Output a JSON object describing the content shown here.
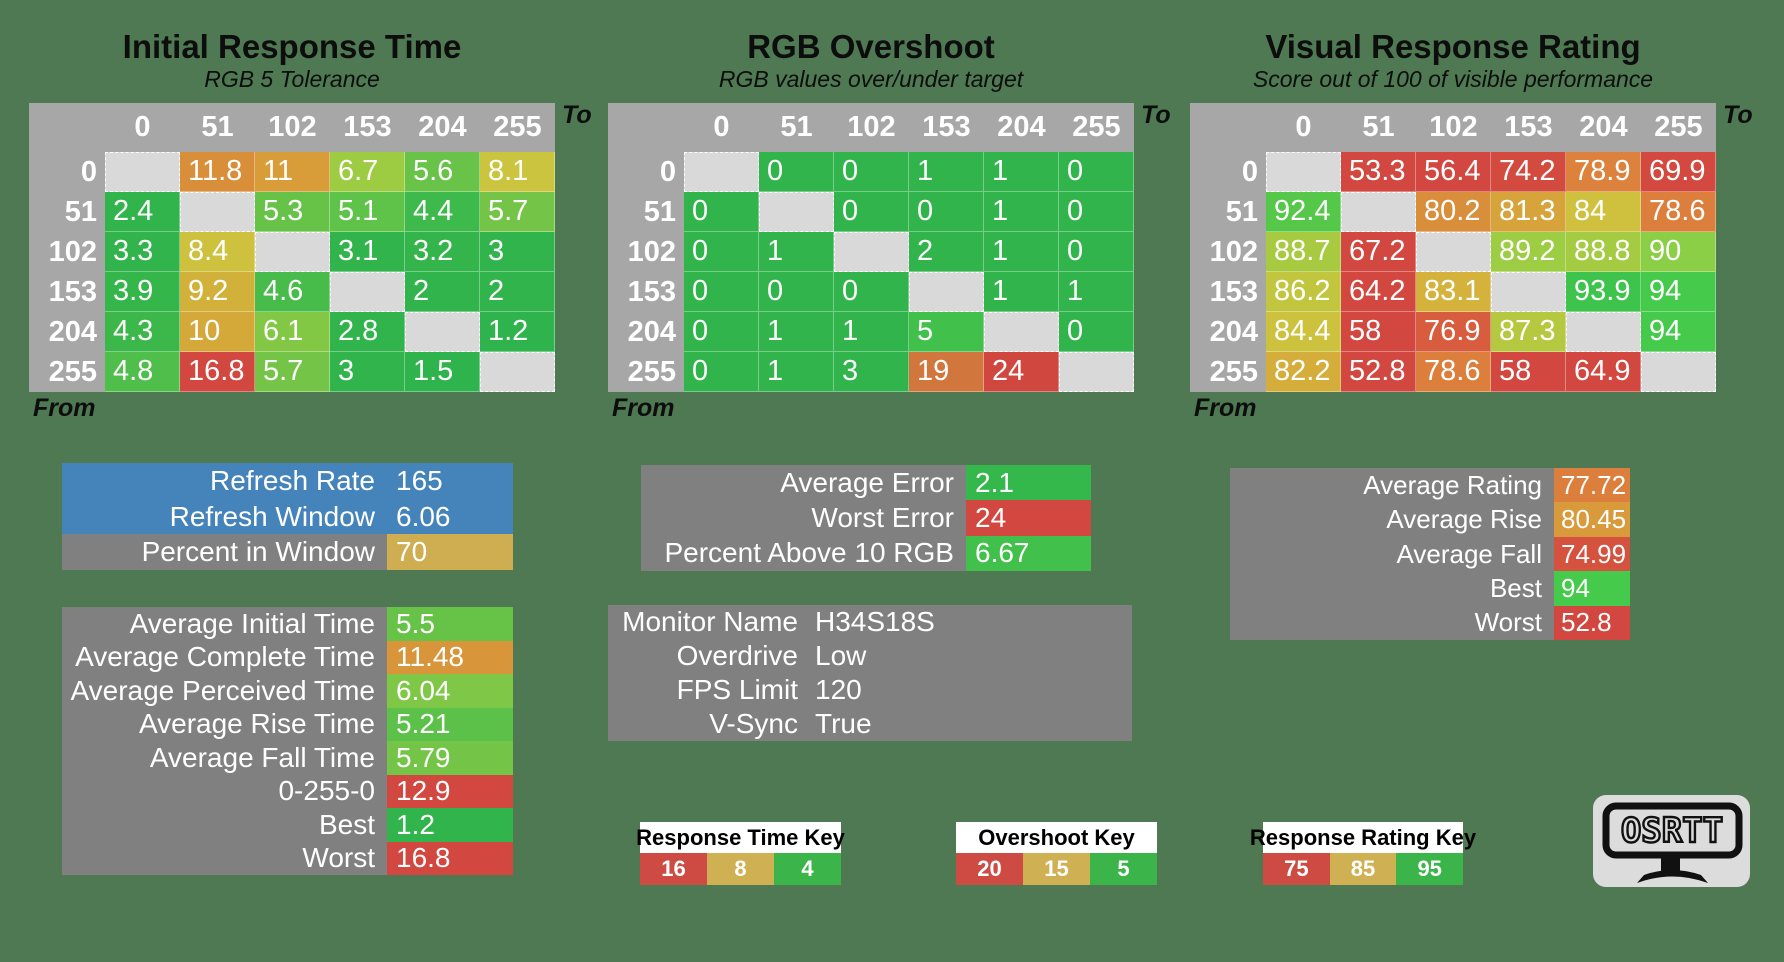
{
  "background_color": "#4e7952",
  "chart_data": [
    {
      "type": "heatmap",
      "title": "Initial Response Time",
      "subtitle": "RGB 5 Tolerance",
      "x_label": "To",
      "y_label": "From",
      "x_ticks": [
        "0",
        "51",
        "102",
        "153",
        "204",
        "255"
      ],
      "y_ticks": [
        "0",
        "51",
        "102",
        "153",
        "204",
        "255"
      ],
      "values": [
        [
          null,
          11.8,
          11,
          6.7,
          5.6,
          8.1
        ],
        [
          2.4,
          null,
          5.3,
          5.1,
          4.4,
          5.7
        ],
        [
          3.3,
          8.4,
          null,
          3.1,
          3.2,
          3
        ],
        [
          3.9,
          9.2,
          4.6,
          null,
          2,
          2
        ],
        [
          4.3,
          10,
          6.1,
          2.8,
          null,
          1.2
        ],
        [
          4.8,
          16.8,
          5.7,
          3,
          1.5,
          null
        ]
      ],
      "cell_colors": [
        [
          null,
          "#d98f3a",
          "#d89c39",
          "#9dcb42",
          "#68c348",
          "#cbc43e"
        ],
        [
          "#31b44b",
          null,
          "#66c348",
          "#5fc249",
          "#3eb94b",
          "#74c547"
        ],
        [
          "#31b44b",
          "#cdc13d",
          null,
          "#31b44b",
          "#33b54b",
          "#31b44b"
        ],
        [
          "#35b64b",
          "#d2b13b",
          "#47bc4a",
          null,
          "#31b44b",
          "#31b44b"
        ],
        [
          "#3cb84b",
          "#d5a83a",
          "#83c845",
          "#31b44b",
          null,
          "#2fb34c"
        ],
        [
          "#50be4a",
          "#d2473f",
          "#74c547",
          "#31b44b",
          "#2fb34c",
          null
        ]
      ]
    },
    {
      "type": "heatmap",
      "title": "RGB Overshoot",
      "subtitle": "RGB values over/under target",
      "x_label": "To",
      "y_label": "From",
      "x_ticks": [
        "0",
        "51",
        "102",
        "153",
        "204",
        "255"
      ],
      "y_ticks": [
        "0",
        "51",
        "102",
        "153",
        "204",
        "255"
      ],
      "values": [
        [
          null,
          0,
          0,
          1,
          1,
          0
        ],
        [
          0,
          null,
          0,
          0,
          1,
          0
        ],
        [
          0,
          1,
          null,
          2,
          1,
          0
        ],
        [
          0,
          0,
          0,
          null,
          1,
          1
        ],
        [
          0,
          1,
          1,
          5,
          null,
          0
        ],
        [
          0,
          1,
          3,
          19,
          24,
          null
        ]
      ],
      "cell_colors": [
        [
          null,
          "#31b44b",
          "#31b44b",
          "#31b44b",
          "#31b44b",
          "#31b44b"
        ],
        [
          "#31b44b",
          null,
          "#31b44b",
          "#31b44b",
          "#31b44b",
          "#31b44b"
        ],
        [
          "#31b44b",
          "#31b44b",
          null,
          "#31b44b",
          "#31b44b",
          "#31b44b"
        ],
        [
          "#31b44b",
          "#31b44b",
          "#31b44b",
          null,
          "#31b44b",
          "#31b44b"
        ],
        [
          "#31b44b",
          "#31b44b",
          "#31b44b",
          "#41c04b",
          null,
          "#31b44b"
        ],
        [
          "#31b44b",
          "#31b44b",
          "#31b44b",
          "#d1763c",
          "#d0473f",
          null
        ]
      ]
    },
    {
      "type": "heatmap",
      "title": "Visual Response Rating",
      "subtitle": "Score out of 100 of visible performance",
      "x_label": "To",
      "y_label": "From",
      "x_ticks": [
        "0",
        "51",
        "102",
        "153",
        "204",
        "255"
      ],
      "y_ticks": [
        "0",
        "51",
        "102",
        "153",
        "204",
        "255"
      ],
      "values": [
        [
          null,
          53.3,
          56.4,
          74.2,
          78.9,
          69.9
        ],
        [
          92.4,
          null,
          80.2,
          81.3,
          84,
          78.6
        ],
        [
          88.7,
          67.2,
          null,
          89.2,
          88.8,
          90
        ],
        [
          86.2,
          64.2,
          83.1,
          null,
          93.9,
          94
        ],
        [
          84.4,
          58,
          76.9,
          87.3,
          null,
          94
        ],
        [
          82.2,
          52.8,
          78.6,
          58,
          64.9,
          null
        ]
      ],
      "cell_colors": [
        [
          null,
          "#d2473f",
          "#d2473f",
          "#d34a3f",
          "#dc823c",
          "#d4493f"
        ],
        [
          "#55c84a",
          null,
          "#d98e3b",
          "#d7a43b",
          "#cfc13e",
          "#dc7f3c"
        ],
        [
          "#a8ca41",
          "#d2473f",
          null,
          "#9ccd43",
          "#a4cb42",
          "#8bcf46"
        ],
        [
          "#c2c63f",
          "#d2473f",
          "#d4b23c",
          null,
          "#3ec44c",
          "#45ca4b"
        ],
        [
          "#cdc23e",
          "#d2473f",
          "#d75d3e",
          "#b5c940",
          null,
          "#45ca4b"
        ],
        [
          "#d5ad3b",
          "#d2473f",
          "#dc7f3c",
          "#d2473f",
          "#d2473f",
          null
        ]
      ]
    }
  ],
  "panels": {
    "refresh": {
      "rows": [
        {
          "label": "Refresh Rate",
          "value": 165,
          "row_bg": "#4583bb"
        },
        {
          "label": "Refresh Window",
          "value": 6.06,
          "row_bg": "#4583bb"
        },
        {
          "label": "Percent in Window",
          "value": 70,
          "value_bg": "#cfae52"
        }
      ]
    },
    "times": {
      "rows": [
        {
          "label": "Average Initial Time",
          "value": 5.5,
          "value_bg": "#66c348"
        },
        {
          "label": "Average Complete Time",
          "value": 11.48,
          "value_bg": "#d8953a"
        },
        {
          "label": "Average Perceived Time",
          "value": 6.04,
          "value_bg": "#7fc746"
        },
        {
          "label": "Average Rise Time",
          "value": 5.21,
          "value_bg": "#5cc149"
        },
        {
          "label": "Average Fall Time",
          "value": 5.79,
          "value_bg": "#74c547"
        },
        {
          "label": "0-255-0",
          "value": 12.9,
          "value_bg": "#d2473f"
        },
        {
          "label": "Best",
          "value": 1.2,
          "value_bg": "#31b44b"
        },
        {
          "label": "Worst",
          "value": 16.8,
          "value_bg": "#d2473f"
        }
      ]
    },
    "overshoot": {
      "rows": [
        {
          "label": "Average Error",
          "value": 2.1,
          "value_bg": "#35b84b"
        },
        {
          "label": "Worst Error",
          "value": 24,
          "value_bg": "#d2473f"
        },
        {
          "label": "Percent Above 10 RGB",
          "value": 6.67,
          "value_bg": "#41c04b"
        }
      ]
    },
    "monitor": {
      "rows": [
        {
          "label": "Monitor Name",
          "value": "H34S18S"
        },
        {
          "label": "Overdrive",
          "value": "Low"
        },
        {
          "label": "FPS Limit",
          "value": 120
        },
        {
          "label": "V-Sync",
          "value": "True"
        }
      ]
    },
    "rating": {
      "rows": [
        {
          "label": "Average Rating",
          "value": 77.72,
          "value_bg": "#dc7f3c"
        },
        {
          "label": "Average Rise",
          "value": 80.45,
          "value_bg": "#d89a3a"
        },
        {
          "label": "Average Fall",
          "value": 74.99,
          "value_bg": "#d5533e"
        },
        {
          "label": "Best",
          "value": 94,
          "value_bg": "#45ca4b"
        },
        {
          "label": "Worst",
          "value": 52.8,
          "value_bg": "#d2473f"
        }
      ]
    }
  },
  "keys": [
    {
      "title": "Response Time Key",
      "cells": [
        {
          "v": 16,
          "c": "#cd4b43"
        },
        {
          "v": 8,
          "c": "#cfb053"
        },
        {
          "v": 4,
          "c": "#3bb54a"
        }
      ]
    },
    {
      "title": "Overshoot Key",
      "cells": [
        {
          "v": 20,
          "c": "#cd4b43"
        },
        {
          "v": 15,
          "c": "#cfb053"
        },
        {
          "v": 5,
          "c": "#3bb54a"
        }
      ]
    },
    {
      "title": "Response Rating Key",
      "cells": [
        {
          "v": 75,
          "c": "#cd4b43"
        },
        {
          "v": 85,
          "c": "#cfb053"
        },
        {
          "v": 95,
          "c": "#3bb54a"
        }
      ]
    }
  ],
  "logo": {
    "text": "OSRTT"
  },
  "status_colors": {
    "good": "#31b44b",
    "warn": "#cfb053",
    "bad": "#d2473f",
    "info_blue": "#4583bb",
    "panel_gray": "#808080",
    "header_gray": "#a7a7a7",
    "diagonal_gray": "#d9d9d9"
  }
}
